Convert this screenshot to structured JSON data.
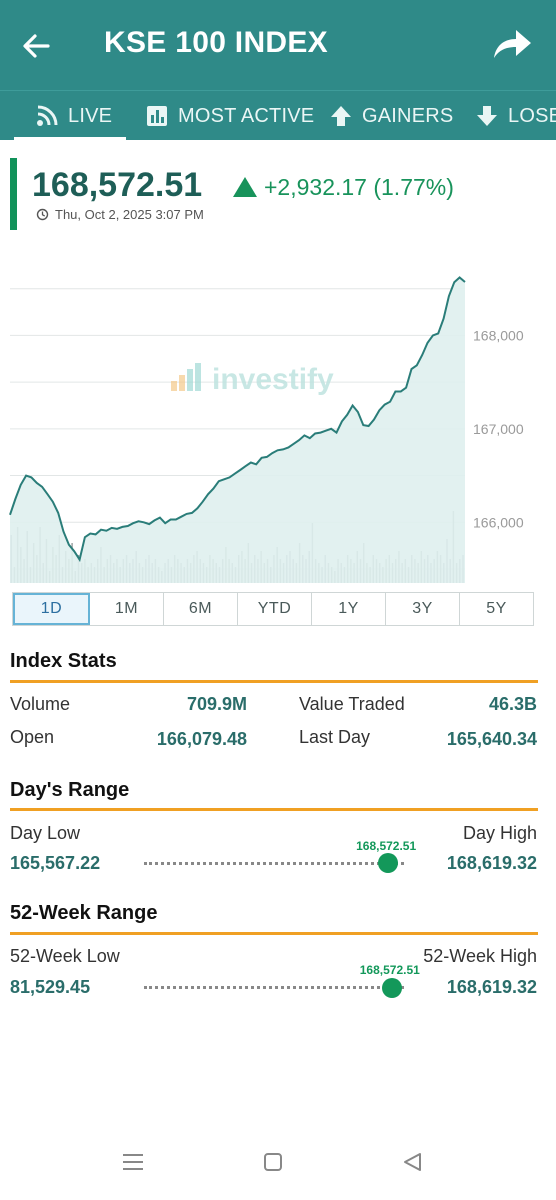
{
  "header": {
    "title": "KSE 100 INDEX",
    "back_icon": "arrow-left-icon",
    "share_icon": "share-icon"
  },
  "tabs": [
    {
      "label": "LIVE",
      "icon": "live-signal-icon",
      "selected": true
    },
    {
      "label": "MOST ACTIVE",
      "icon": "bar-chart-icon",
      "selected": false
    },
    {
      "label": "GAINERS",
      "icon": "arrow-up-icon",
      "selected": false
    },
    {
      "label": "LOSERS",
      "icon": "arrow-down-icon",
      "selected": false
    }
  ],
  "quote": {
    "price": "168,572.51",
    "change": "+2,932.17 (1.77%)",
    "timestamp": "Thu, Oct 2, 2025 3:07 PM"
  },
  "watermark": "investify",
  "chart_data": {
    "type": "line",
    "y_ticks": [
      "168,000",
      "167,000",
      "166,000"
    ],
    "ylim": [
      165350,
      168850
    ],
    "values": [
      166080,
      166250,
      166400,
      166500,
      166480,
      166420,
      166380,
      166300,
      166220,
      166100,
      165900,
      165760,
      165690,
      165600,
      165840,
      165880,
      165870,
      165920,
      165910,
      165940,
      165930,
      165950,
      165960,
      165990,
      166010,
      166000,
      165980,
      166020,
      166050,
      165990,
      166030,
      166030,
      166060,
      166090,
      166100,
      166150,
      166220,
      166300,
      166360,
      166440,
      166460,
      166480,
      166520,
      166560,
      166600,
      166640,
      166620,
      166690,
      166700,
      166740,
      166770,
      166780,
      166800,
      166840,
      166880,
      166930,
      166900,
      166950,
      166960,
      166980,
      167000,
      166960,
      167080,
      167150,
      167250,
      167180,
      167040,
      167030,
      167100,
      167200,
      167260,
      167290,
      167400,
      167400,
      167440,
      167640,
      167680,
      167790,
      167920,
      168000,
      168020,
      168180,
      168420,
      168570,
      168620,
      168572
    ],
    "volume_bars": [
      0.6,
      0.2,
      0.7,
      0.45,
      0.3,
      0.65,
      0.2,
      0.5,
      0.35,
      0.7,
      0.25,
      0.55,
      0.15,
      0.45,
      0.35,
      0.6,
      0.2,
      0.4,
      0.3,
      0.5,
      0.15,
      0.35,
      0.25,
      0.3,
      0.2,
      0.25,
      0.2,
      0.3,
      0.45,
      0.2,
      0.3,
      0.35,
      0.25,
      0.3,
      0.2,
      0.3,
      0.35,
      0.25,
      0.3,
      0.4,
      0.25,
      0.2,
      0.3,
      0.35,
      0.25,
      0.3,
      0.2,
      0.15,
      0.25,
      0.3,
      0.2,
      0.35,
      0.3,
      0.25,
      0.2,
      0.3,
      0.25,
      0.35,
      0.4,
      0.3,
      0.25,
      0.2,
      0.35,
      0.3,
      0.25,
      0.2,
      0.3,
      0.45,
      0.3,
      0.25,
      0.2,
      0.35,
      0.4,
      0.3,
      0.5,
      0.25,
      0.35,
      0.3,
      0.4,
      0.25,
      0.3,
      0.2,
      0.35,
      0.45,
      0.3,
      0.25,
      0.35,
      0.4,
      0.3,
      0.25,
      0.5,
      0.35,
      0.3,
      0.4,
      0.75,
      0.3,
      0.25,
      0.2,
      0.35,
      0.25,
      0.2,
      0.15,
      0.3,
      0.25,
      0.2,
      0.35,
      0.3,
      0.25,
      0.4,
      0.3,
      0.5,
      0.25,
      0.2,
      0.35,
      0.3,
      0.25,
      0.2,
      0.3,
      0.35,
      0.25,
      0.3,
      0.4,
      0.25,
      0.3,
      0.2,
      0.35,
      0.3,
      0.25,
      0.4,
      0.3,
      0.35,
      0.25,
      0.3,
      0.4,
      0.35,
      0.25,
      0.55,
      0.3,
      0.9,
      0.25,
      0.3,
      0.35
    ],
    "colors": {
      "line": "#2a7d79",
      "fill": "#dff0ee",
      "volume": "#9aa0a0"
    }
  },
  "ranges": [
    "1D",
    "1M",
    "6M",
    "YTD",
    "1Y",
    "3Y",
    "5Y"
  ],
  "index_stats": {
    "title": "Index Stats",
    "volume_label": "Volume",
    "volume": "709.9M",
    "value_traded_label": "Value Traded",
    "value_traded": "46.3B",
    "open_label": "Open",
    "open": "166,079.48",
    "last_day_label": "Last Day",
    "last_day": "165,640.34"
  },
  "days_range": {
    "title": "Day's Range",
    "low_label": "Day Low",
    "low": "165,567.22",
    "high_label": "Day High",
    "high": "168,619.32",
    "current": "168,572.51",
    "position": 0.985
  },
  "week52_range": {
    "title": "52-Week Range",
    "low_label": "52-Week Low",
    "low": "81,529.45",
    "high_label": "52-Week High",
    "high": "168,619.32",
    "current": "168,572.51",
    "position": 0.999
  },
  "nav": [
    "menu-icon",
    "home-square-icon",
    "back-triangle-icon"
  ],
  "colors": {
    "header": "#2f8a88",
    "accent": "#f0a023",
    "positive": "#18935b",
    "value_text": "#2a6d6a"
  }
}
